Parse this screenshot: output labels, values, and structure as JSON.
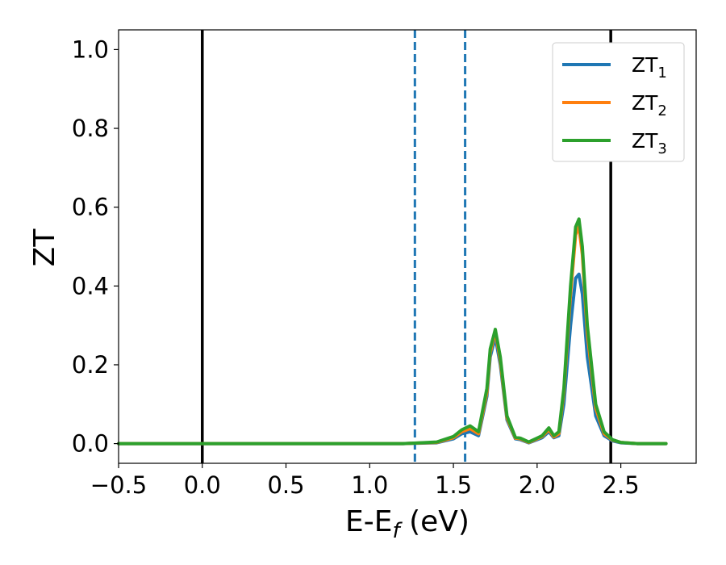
{
  "chart_data": {
    "type": "line",
    "title": "",
    "xlabel_main": "E-E",
    "xlabel_sub": "f",
    "xlabel_unit": " (eV)",
    "ylabel": "ZT",
    "xlim": [
      -0.5,
      2.95
    ],
    "ylim": [
      -0.05,
      1.05
    ],
    "xticks": [
      -0.5,
      0.0,
      0.5,
      1.0,
      1.5,
      2.0,
      2.5
    ],
    "xtick_labels": [
      "−0.5",
      "0.0",
      "0.5",
      "1.0",
      "1.5",
      "2.0",
      "2.5"
    ],
    "yticks": [
      0.0,
      0.2,
      0.4,
      0.6,
      0.8,
      1.0
    ],
    "ytick_labels": [
      "0.0",
      "0.2",
      "0.4",
      "0.6",
      "0.8",
      "1.0"
    ],
    "grid": false,
    "legend_position": "top-right",
    "vlines": [
      {
        "x": 0.0,
        "style": "solid",
        "color": "#000000"
      },
      {
        "x": 2.44,
        "style": "solid",
        "color": "#000000"
      },
      {
        "x": 1.27,
        "style": "dashed",
        "color": "#1f77b4"
      },
      {
        "x": 1.57,
        "style": "dashed",
        "color": "#1f77b4"
      }
    ],
    "series": [
      {
        "name_main": "ZT",
        "name_sub": "1",
        "color": "#1f77b4",
        "x": [
          -0.5,
          1.2,
          1.4,
          1.5,
          1.55,
          1.6,
          1.65,
          1.7,
          1.72,
          1.75,
          1.78,
          1.82,
          1.87,
          1.9,
          1.95,
          2.0,
          2.03,
          2.07,
          2.1,
          2.13,
          2.16,
          2.2,
          2.23,
          2.25,
          2.27,
          2.3,
          2.35,
          2.4,
          2.45,
          2.5,
          2.6,
          2.77
        ],
        "y": [
          0.0,
          0.0,
          0.002,
          0.012,
          0.025,
          0.03,
          0.02,
          0.12,
          0.22,
          0.27,
          0.2,
          0.06,
          0.012,
          0.01,
          0.002,
          0.01,
          0.015,
          0.03,
          0.015,
          0.02,
          0.1,
          0.3,
          0.42,
          0.43,
          0.38,
          0.22,
          0.07,
          0.02,
          0.007,
          0.002,
          0.0,
          0.0
        ]
      },
      {
        "name_main": "ZT",
        "name_sub": "2",
        "color": "#ff7f0e",
        "x": [
          -0.5,
          1.2,
          1.4,
          1.5,
          1.55,
          1.6,
          1.65,
          1.7,
          1.72,
          1.75,
          1.78,
          1.82,
          1.87,
          1.9,
          1.95,
          2.0,
          2.03,
          2.07,
          2.1,
          2.13,
          2.16,
          2.2,
          2.23,
          2.25,
          2.27,
          2.3,
          2.35,
          2.4,
          2.45,
          2.5,
          2.6,
          2.77
        ],
        "y": [
          0.0,
          0.0,
          0.003,
          0.015,
          0.03,
          0.038,
          0.025,
          0.13,
          0.23,
          0.285,
          0.21,
          0.065,
          0.014,
          0.012,
          0.003,
          0.012,
          0.018,
          0.035,
          0.017,
          0.025,
          0.13,
          0.38,
          0.53,
          0.55,
          0.48,
          0.28,
          0.09,
          0.025,
          0.009,
          0.003,
          0.0,
          0.0
        ]
      },
      {
        "name_main": "ZT",
        "name_sub": "3",
        "color": "#2ca02c",
        "x": [
          -0.5,
          1.2,
          1.4,
          1.5,
          1.55,
          1.6,
          1.65,
          1.7,
          1.72,
          1.75,
          1.78,
          1.82,
          1.87,
          1.9,
          1.95,
          2.0,
          2.03,
          2.07,
          2.1,
          2.13,
          2.16,
          2.2,
          2.23,
          2.25,
          2.27,
          2.3,
          2.35,
          2.4,
          2.45,
          2.5,
          2.6,
          2.77
        ],
        "y": [
          0.0,
          0.0,
          0.004,
          0.018,
          0.035,
          0.045,
          0.03,
          0.14,
          0.24,
          0.29,
          0.22,
          0.07,
          0.016,
          0.014,
          0.004,
          0.014,
          0.02,
          0.04,
          0.02,
          0.03,
          0.14,
          0.4,
          0.55,
          0.57,
          0.5,
          0.3,
          0.1,
          0.03,
          0.01,
          0.003,
          0.0,
          0.0
        ]
      }
    ]
  }
}
